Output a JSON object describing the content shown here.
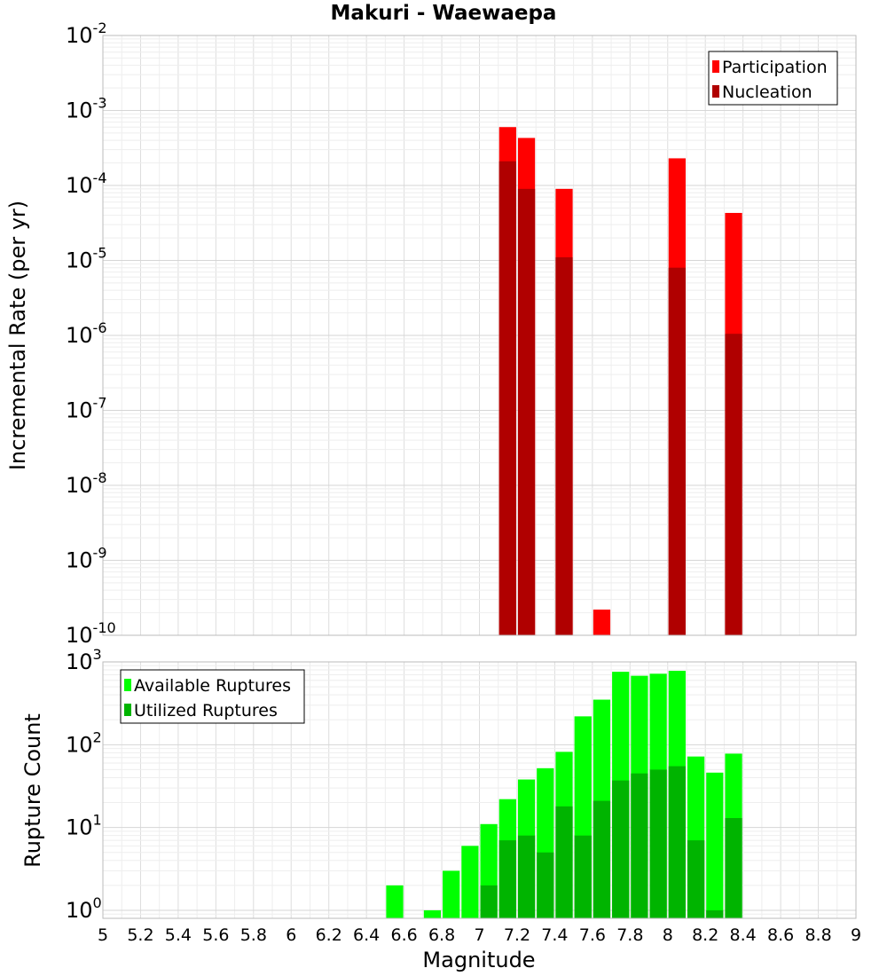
{
  "chart_data": [
    {
      "type": "bar",
      "title": "Makuri - Waewaepa",
      "xlabel": "",
      "ylabel": "Incremental Rate (per yr)",
      "yscale": "log",
      "ylim": [
        1e-10,
        0.01
      ],
      "xlim": [
        5,
        9
      ],
      "y_tick_exponents": [
        -10,
        -9,
        -8,
        -7,
        -6,
        -5,
        -4,
        -3,
        -2
      ],
      "legend_position": "top-right",
      "legend": [
        "Participation",
        "Nucleation"
      ],
      "x": [
        7.15,
        7.25,
        7.45,
        7.65,
        8.05,
        8.35
      ],
      "series": [
        {
          "name": "Participation",
          "color": "#ff0000",
          "values": [
            0.0006,
            0.00043,
            9e-05,
            2.2e-10,
            0.00023,
            4.3e-05
          ]
        },
        {
          "name": "Nucleation",
          "color": "#b00000",
          "values": [
            0.00021,
            9e-05,
            1.1e-05,
            null,
            8e-06,
            1.05e-06
          ]
        }
      ],
      "grid": true
    },
    {
      "type": "bar",
      "xlabel": "Magnitude",
      "ylabel": "Rupture Count",
      "yscale": "log",
      "ylim": [
        0.8,
        1000
      ],
      "xlim": [
        5,
        9
      ],
      "y_tick_exponents": [
        0,
        1,
        2,
        3
      ],
      "x_tick_labels": [
        "5",
        "5.2",
        "5.4",
        "5.6",
        "5.8",
        "6",
        "6.2",
        "6.4",
        "6.6",
        "6.8",
        "7",
        "7.2",
        "7.4",
        "7.6",
        "7.8",
        "8",
        "8.2",
        "8.4",
        "8.6",
        "8.8",
        "9"
      ],
      "legend_position": "top-left",
      "legend": [
        "Available Ruptures",
        "Utilized Ruptures"
      ],
      "x": [
        6.55,
        6.65,
        6.75,
        6.85,
        6.95,
        7.05,
        7.15,
        7.25,
        7.35,
        7.45,
        7.55,
        7.65,
        7.75,
        7.85,
        7.95,
        8.05,
        8.15,
        8.25,
        8.35
      ],
      "series": [
        {
          "name": "Available Ruptures",
          "color": "#00ff00",
          "values": [
            2,
            null,
            1,
            3,
            6,
            11,
            22,
            38,
            52,
            82,
            220,
            350,
            760,
            680,
            720,
            780,
            72,
            46,
            78
          ]
        },
        {
          "name": "Utilized Ruptures",
          "color": "#00b400",
          "values": [
            null,
            null,
            null,
            null,
            null,
            2,
            7,
            8,
            5,
            18,
            8,
            21,
            37,
            45,
            50,
            55,
            7,
            1,
            13
          ]
        }
      ],
      "grid": true
    }
  ]
}
